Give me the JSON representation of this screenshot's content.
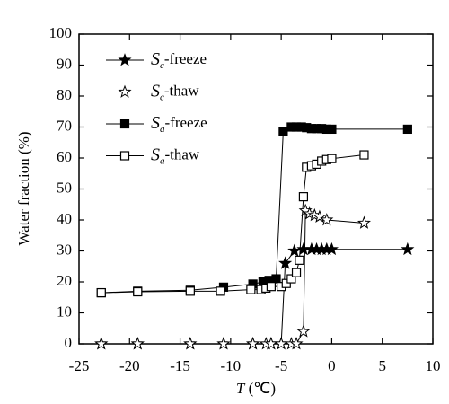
{
  "chart_data": {
    "type": "line",
    "x_label": "T (℃)",
    "y_label": "Water fraction (%)",
    "xlim": [
      -25,
      10
    ],
    "ylim": [
      0,
      100
    ],
    "xticks": [
      -25,
      -20,
      -15,
      -10,
      -5,
      0,
      5,
      10
    ],
    "yticks": [
      0,
      10,
      20,
      30,
      40,
      50,
      60,
      70,
      80,
      90,
      100
    ],
    "legend": "upper left",
    "series": [
      {
        "name": "Sc-freeze",
        "color": "#000000",
        "marker": "star",
        "filled": true,
        "x": [
          -22.8,
          -19.2,
          -14,
          -10.7,
          -7.8,
          -6,
          -5,
          -4.6,
          -3.7,
          -2.8,
          -2,
          -1.5,
          -1,
          -0.5,
          0,
          7.5
        ],
        "values": [
          0,
          0,
          0,
          0,
          0,
          0,
          0,
          26,
          30,
          30.5,
          30.5,
          30.5,
          30.5,
          30.5,
          30.5,
          30.5
        ]
      },
      {
        "name": "Sc-thaw",
        "color": "#000000",
        "marker": "star",
        "filled": false,
        "x": [
          -22.8,
          -19.2,
          -14,
          -10.7,
          -7.8,
          -6.5,
          -6,
          -5,
          -4,
          -3.5,
          -2.8,
          -2.6,
          -2.2,
          -1.7,
          -1.2,
          -0.5,
          3.2
        ],
        "values": [
          0,
          0,
          0,
          0,
          0,
          0,
          0,
          0,
          0,
          0,
          4,
          43,
          42,
          41.5,
          41,
          40,
          39
        ]
      },
      {
        "name": "Sa-freeze",
        "color": "#000000",
        "marker": "square",
        "filled": true,
        "x": [
          -22.8,
          -19.2,
          -14,
          -10.7,
          -7.8,
          -6.8,
          -6.2,
          -5.5,
          -4.8,
          -4,
          -3.5,
          -3,
          -2.5,
          -2,
          -1.5,
          -1,
          -0.5,
          0,
          7.5
        ],
        "values": [
          16.5,
          17,
          17.3,
          18.3,
          19.3,
          20,
          20.5,
          21,
          68.5,
          70,
          70,
          70,
          69.8,
          69.5,
          69.5,
          69.5,
          69.3,
          69.3,
          69.3
        ]
      },
      {
        "name": "Sa-thaw",
        "color": "#000000",
        "marker": "square",
        "filled": false,
        "x": [
          -22.8,
          -19.2,
          -14,
          -11,
          -8,
          -7,
          -6.5,
          -6,
          -5,
          -4.5,
          -4,
          -3.5,
          -3.2,
          -2.8,
          -2.5,
          -2,
          -1.5,
          -1,
          -0.5,
          0,
          3.2
        ],
        "values": [
          16.5,
          16.8,
          17,
          17,
          17.5,
          17.5,
          18,
          18.5,
          18.5,
          19.5,
          21,
          23,
          27,
          47.5,
          57,
          57.5,
          58,
          59,
          59.5,
          59.8,
          61
        ]
      }
    ]
  }
}
